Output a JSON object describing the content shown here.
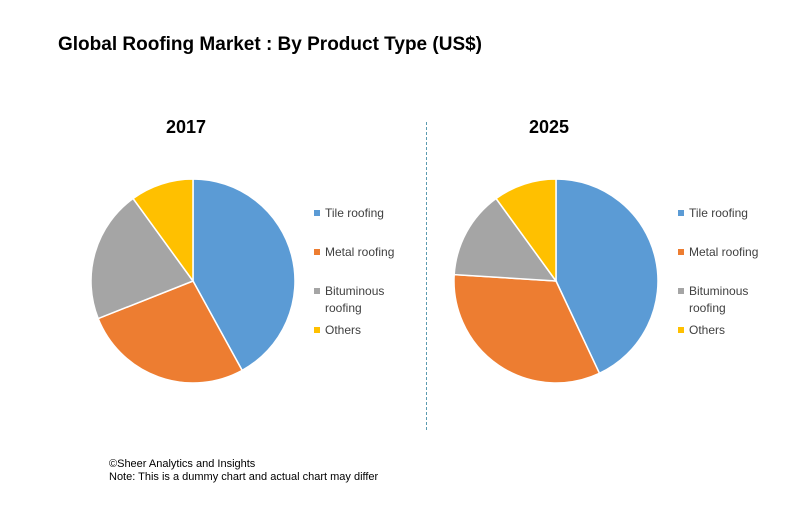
{
  "title": "Global Roofing Market : By Product Type (US$)",
  "footer": {
    "source": "©Sheer Analytics and Insights",
    "note": "Note: This is a dummy chart and actual chart may differ"
  },
  "chart_data": [
    {
      "type": "pie",
      "title": "2017",
      "categories": [
        "Tile roofing",
        "Metal roofing",
        "Bituminous roofing",
        "Others"
      ],
      "values": [
        42,
        27,
        21,
        10
      ],
      "colors": [
        "#5b9bd5",
        "#ed7d31",
        "#a5a5a5",
        "#ffc000"
      ],
      "legend": "right"
    },
    {
      "type": "pie",
      "title": "2025",
      "categories": [
        "Tile roofing",
        "Metal roofing",
        "Bituminous roofing",
        "Others"
      ],
      "values": [
        43,
        33,
        14,
        10
      ],
      "colors": [
        "#5b9bd5",
        "#ed7d31",
        "#a5a5a5",
        "#ffc000"
      ],
      "legend": "right"
    }
  ]
}
